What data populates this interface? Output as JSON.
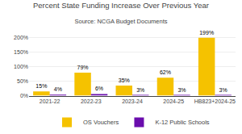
{
  "chart_data": {
    "type": "bar",
    "title": "Percent State Funding Increase Over Previous Year",
    "subtitle": "Source: NCGA Budget Documents",
    "categories": [
      "2021-22",
      "2022-23",
      "2023-24",
      "2024-25",
      "HB823+2024-25"
    ],
    "series": [
      {
        "name": "OS Vouchers",
        "color": "#F5C200",
        "values": [
          15,
          79,
          35,
          62,
          199
        ],
        "value_labels": [
          "15%",
          "79%",
          "35%",
          "62%",
          "199%"
        ]
      },
      {
        "name": "K-12 Public Schools",
        "color": "#6A0DAD",
        "values": [
          4,
          6,
          3,
          3,
          3
        ],
        "value_labels": [
          "4%",
          "6%",
          "3%",
          "3%",
          "3%"
        ]
      }
    ],
    "ylim": [
      0,
      218
    ],
    "yticks": [
      {
        "value": 0,
        "label": "0%"
      },
      {
        "value": 50,
        "label": "50%"
      },
      {
        "value": 100,
        "label": "100%"
      },
      {
        "value": 150,
        "label": "150%"
      },
      {
        "value": 200,
        "label": "200%"
      }
    ],
    "grid": true,
    "data_labels": true,
    "legend": "bottom"
  }
}
